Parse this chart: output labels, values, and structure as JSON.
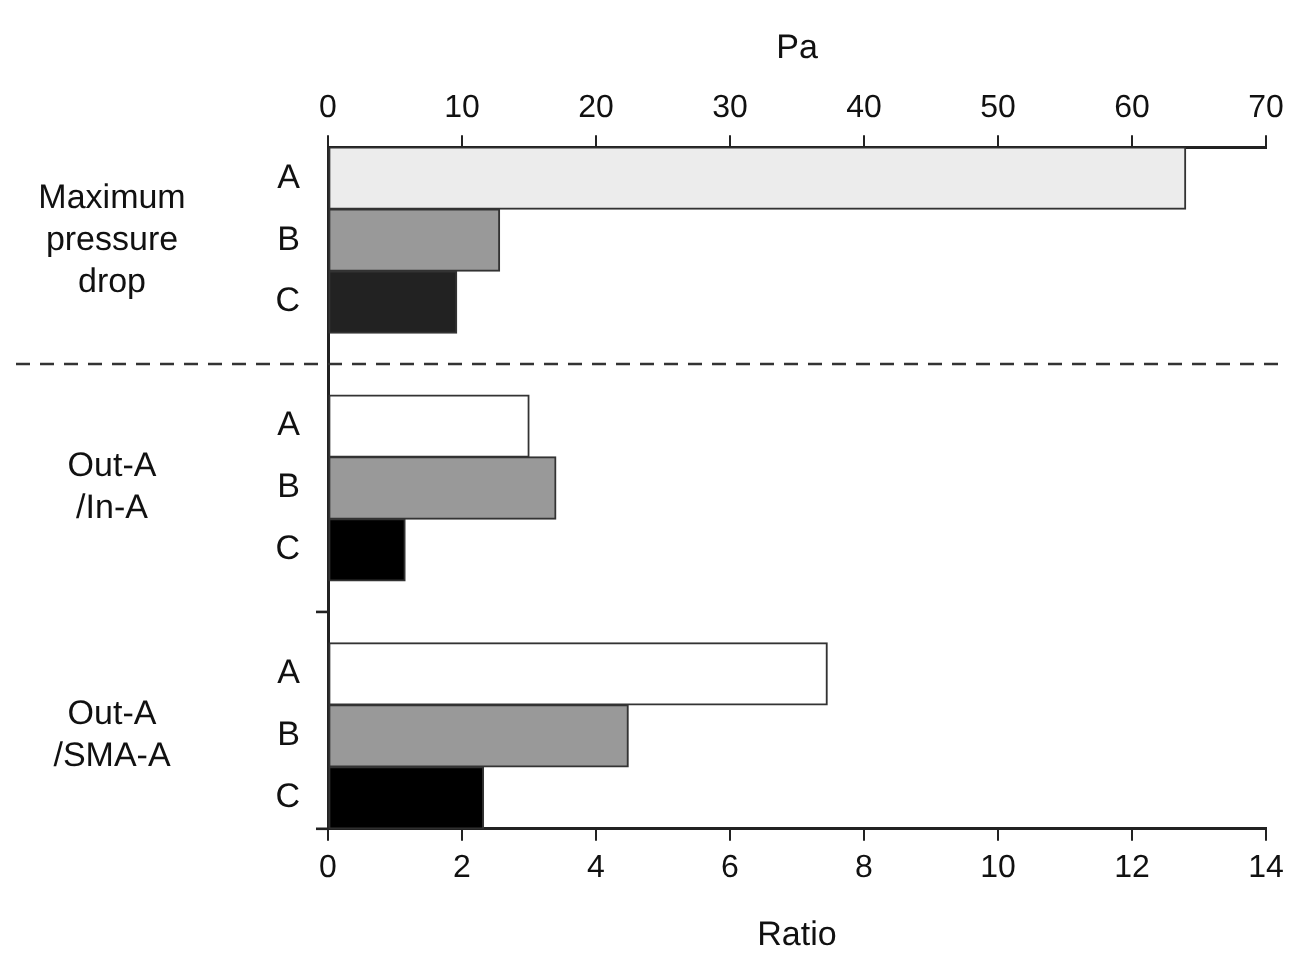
{
  "chart_data": {
    "type": "bar",
    "orientation": "horizontal",
    "xlabel": "Ratio",
    "x2label": "Pa",
    "categories": [
      "A",
      "B",
      "C",
      null,
      "A",
      "B",
      "C",
      null,
      "A",
      "B",
      "C"
    ],
    "series": [
      {
        "axis": "x2",
        "colors": [
          "#ececec",
          "#999999",
          "#222222",
          null,
          null,
          null,
          null,
          null,
          null,
          null,
          null
        ],
        "values": [
          64,
          12.8,
          9.6,
          null,
          null,
          null,
          null,
          null,
          null,
          null,
          null
        ]
      },
      {
        "colors": [
          null,
          null,
          null,
          null,
          "#ffffff",
          "#999999",
          "#000000",
          null,
          null,
          null,
          null
        ],
        "values": [
          null,
          null,
          null,
          null,
          3.0,
          3.4,
          1.15,
          null,
          null,
          null,
          null
        ]
      },
      {
        "colors": [
          null,
          null,
          null,
          null,
          null,
          null,
          null,
          null,
          "#ffffff",
          "#999999",
          "#000000"
        ],
        "values": [
          null,
          null,
          null,
          null,
          null,
          null,
          null,
          null,
          7.45,
          4.48,
          2.32
        ]
      }
    ],
    "xlim": [
      0,
      14
    ],
    "xticks": [
      0,
      2,
      4,
      6,
      8,
      10,
      12,
      14
    ],
    "x2lim": [
      0,
      70
    ],
    "x2ticks": [
      0,
      10,
      20,
      30,
      40,
      50,
      60,
      70
    ],
    "annotations": [
      "Maximum pressure drop",
      "Out-A /In-A",
      "Out-A /SMA-A"
    ],
    "grid": false,
    "legend": false
  }
}
